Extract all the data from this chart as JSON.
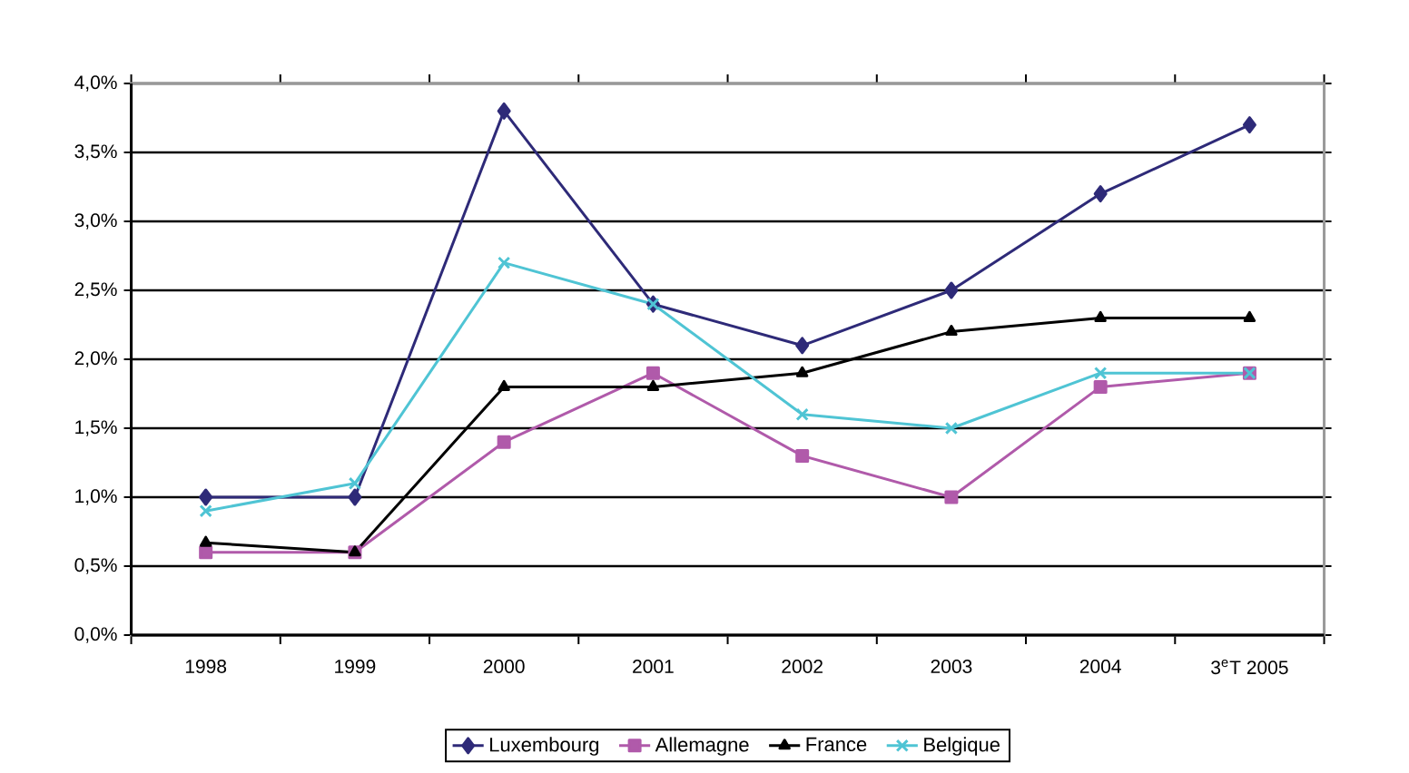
{
  "chart_data": {
    "type": "line",
    "categories": [
      "1998",
      "1999",
      "2000",
      "2001",
      "2002",
      "2003",
      "2004",
      "3$^{e}$T 2005"
    ],
    "series": [
      {
        "name": "Luxembourg",
        "color": "#2e2a78",
        "marker": "diamond",
        "values": [
          1.0,
          1.0,
          3.8,
          2.4,
          2.1,
          2.5,
          3.2,
          3.7
        ]
      },
      {
        "name": "Allemagne",
        "color": "#b05aaa",
        "marker": "square",
        "values": [
          0.6,
          0.6,
          1.4,
          1.9,
          1.3,
          1.0,
          1.8,
          1.9
        ]
      },
      {
        "name": "France",
        "color": "#000000",
        "marker": "triangle",
        "values": [
          0.67,
          0.6,
          1.8,
          1.8,
          1.9,
          2.2,
          2.3,
          2.3
        ]
      },
      {
        "name": "Belgique",
        "color": "#4fc4d4",
        "marker": "cross",
        "values": [
          0.9,
          1.1,
          2.7,
          2.4,
          1.6,
          1.5,
          1.9,
          1.9
        ]
      }
    ],
    "ylim": [
      0,
      4
    ],
    "yticks": [
      {
        "value": 0,
        "label": "0,0%"
      },
      {
        "value": 0.5,
        "label": "0,5%"
      },
      {
        "value": 1,
        "label": "1,0%"
      },
      {
        "value": 1.5,
        "label": "1,5%"
      },
      {
        "value": 2,
        "label": "2,0%"
      },
      {
        "value": 2.5,
        "label": "2,5%"
      },
      {
        "value": 3,
        "label": "3,0%"
      },
      {
        "value": 3.5,
        "label": "3,5%"
      },
      {
        "value": 4,
        "label": "4,0%"
      }
    ],
    "grid": "y",
    "legend": "bottom",
    "line_style": "solid"
  }
}
